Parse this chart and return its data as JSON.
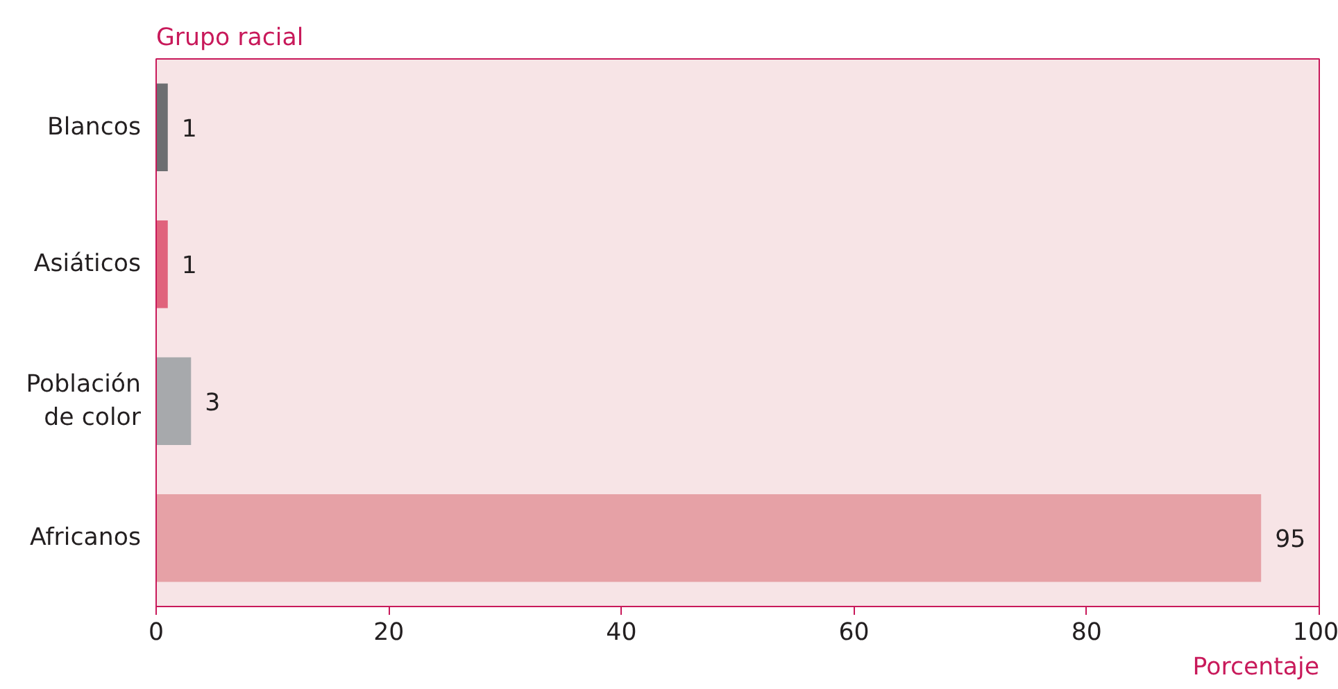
{
  "chart_data": {
    "type": "bar",
    "orientation": "horizontal",
    "ylabel": "Grupo racial",
    "xlabel": "Porcentaje",
    "categories": [
      "Blancos",
      "Asiáticos",
      "Población de color",
      "Africanos"
    ],
    "values": [
      1,
      1,
      3,
      95
    ],
    "colors": [
      "#6d6e71",
      "#e0637c",
      "#a7a9ac",
      "#e6a1a6"
    ],
    "xlim": [
      0,
      100
    ],
    "xticks": [
      0,
      20,
      40,
      60,
      80,
      100
    ],
    "data_labels": true,
    "grid": false
  }
}
